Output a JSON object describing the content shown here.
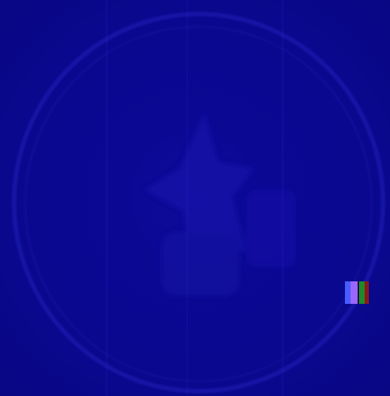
{
  "image": {
    "colors": {
      "background": "#0a0890",
      "ring": "#2a26c8",
      "ring_highlight": "#3a2fd8",
      "figure": "#1a16b0",
      "marker_blue": "#4a5cff",
      "marker_violet": "#9a66ff",
      "marker_green": "#1f8a2a",
      "marker_red": "#8a1a1a"
    },
    "elements": {
      "ring": "faint-circular-outline",
      "figure": "faint-dim-silhouette",
      "marker": "color-bar-strip"
    }
  }
}
